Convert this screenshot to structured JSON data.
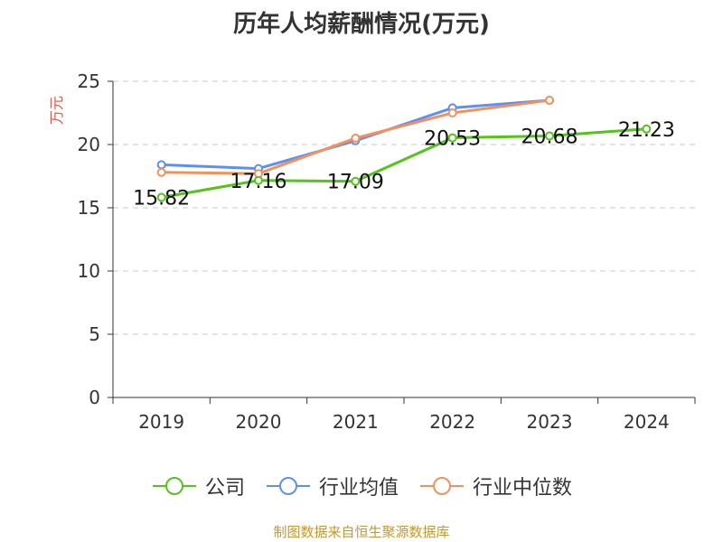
{
  "title": "历年人均薪酬情况(万元)",
  "source": "制图数据来自恒生聚源数据库",
  "colors": {
    "axis_label": "#e8524a",
    "grid": "#c8c8c8",
    "axis": "#333333"
  },
  "chart_data": {
    "type": "line",
    "title": "历年人均薪酬情况(万元)",
    "ylabel": "万元",
    "xlabel": "",
    "categories": [
      "2019",
      "2020",
      "2021",
      "2022",
      "2023",
      "2024"
    ],
    "ylim": [
      0,
      25
    ],
    "yticks": [
      0,
      5,
      10,
      15,
      20,
      25
    ],
    "grid": true,
    "legend_position": "bottom",
    "series": [
      {
        "name": "公司",
        "color": "#52c41a",
        "values": [
          15.82,
          17.16,
          17.09,
          20.53,
          20.68,
          21.23
        ],
        "labels": [
          "15.82",
          "17.16",
          "17.09",
          "20.53",
          "20.68",
          "21.23"
        ]
      },
      {
        "name": "行业均值",
        "color": "#5b8ff9",
        "values": [
          18.4,
          18.1,
          20.3,
          22.9,
          23.5,
          null
        ]
      },
      {
        "name": "行业中位数",
        "color": "#f5905b",
        "values": [
          17.8,
          17.7,
          20.5,
          22.5,
          23.5,
          null
        ]
      }
    ]
  }
}
